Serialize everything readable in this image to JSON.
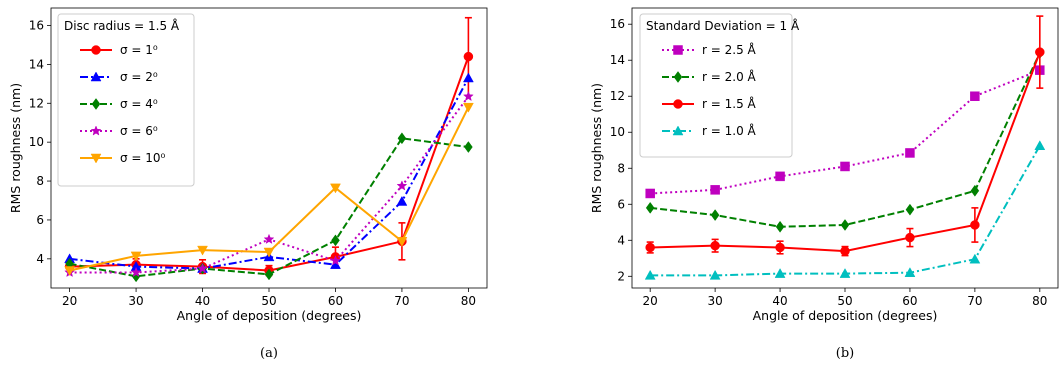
{
  "chart_data": [
    {
      "type": "line",
      "caption": "(a)",
      "xlabel": "Angle of deposition (degrees)",
      "ylabel": "RMS roughness (nm)",
      "x": [
        20,
        30,
        40,
        50,
        60,
        70,
        80
      ],
      "xlim": [
        17.2,
        82.8
      ],
      "ylim": [
        2.5,
        16.9
      ],
      "xticks": [
        20,
        30,
        40,
        50,
        60,
        70,
        80
      ],
      "yticks": [
        4,
        6,
        8,
        10,
        12,
        14,
        16
      ],
      "grid": false,
      "legend": {
        "title": "Disc radius = 1.5 Å",
        "placement": "top-left"
      },
      "series": [
        {
          "name": "σ = 1⁰",
          "color": "#ff0000",
          "marker": "circle",
          "dash": "solid",
          "values": [
            3.6,
            3.7,
            3.6,
            3.4,
            4.1,
            4.9,
            14.4
          ],
          "errors": [
            0.25,
            0.3,
            0.35,
            0.25,
            0.5,
            0.95,
            2.0
          ]
        },
        {
          "name": "σ = 2⁰",
          "color": "#0000ff",
          "marker": "triangle-up",
          "dash": "dashdot",
          "values": [
            4.0,
            3.6,
            3.5,
            4.1,
            3.7,
            6.95,
            13.3
          ]
        },
        {
          "name": "σ = 4⁰",
          "color": "#008000",
          "marker": "diamond",
          "dash": "dashed",
          "values": [
            3.75,
            3.1,
            3.5,
            3.2,
            4.95,
            10.2,
            9.75
          ]
        },
        {
          "name": "σ = 6⁰",
          "color": "#bf00bf",
          "marker": "star",
          "dash": "dotted",
          "values": [
            3.3,
            3.3,
            3.5,
            5.0,
            3.9,
            7.75,
            12.35
          ]
        },
        {
          "name": "σ = 10⁰",
          "color": "#ffa500",
          "marker": "triangle-down",
          "dash": "solid",
          "values": [
            3.4,
            4.15,
            4.45,
            4.35,
            7.65,
            4.9,
            11.8
          ]
        }
      ]
    },
    {
      "type": "line",
      "caption": "(b)",
      "xlabel": "Angle of deposition (degrees)",
      "ylabel": "RMS roughness (nm)",
      "x": [
        20,
        30,
        40,
        50,
        60,
        70,
        80
      ],
      "xlim": [
        17.2,
        82.8
      ],
      "ylim": [
        1.35,
        16.9
      ],
      "xticks": [
        20,
        30,
        40,
        50,
        60,
        70,
        80
      ],
      "yticks": [
        2,
        4,
        6,
        8,
        10,
        12,
        14,
        16
      ],
      "grid": false,
      "legend": {
        "title": "Standard Deviation = 1 Å",
        "placement": "top-left"
      },
      "series": [
        {
          "name": "r = 2.5 Å",
          "color": "#bf00bf",
          "marker": "square",
          "dash": "dotted",
          "values": [
            6.6,
            6.8,
            7.55,
            8.1,
            8.85,
            12.0,
            13.45
          ]
        },
        {
          "name": "r = 2.0 Å",
          "color": "#008000",
          "marker": "diamond",
          "dash": "dashed",
          "values": [
            5.8,
            5.4,
            4.75,
            4.85,
            5.7,
            6.75,
            14.4
          ]
        },
        {
          "name": "r = 1.5 Å",
          "color": "#ff0000",
          "marker": "circle",
          "dash": "solid",
          "values": [
            3.6,
            3.7,
            3.6,
            3.4,
            4.15,
            4.85,
            14.45
          ],
          "errors": [
            0.3,
            0.35,
            0.35,
            0.25,
            0.5,
            0.95,
            2.0
          ]
        },
        {
          "name": "r = 1.0 Å",
          "color": "#00bfbf",
          "marker": "triangle-up",
          "dash": "dashdot",
          "values": [
            2.05,
            2.05,
            2.15,
            2.15,
            2.2,
            2.95,
            9.25
          ]
        }
      ]
    }
  ]
}
